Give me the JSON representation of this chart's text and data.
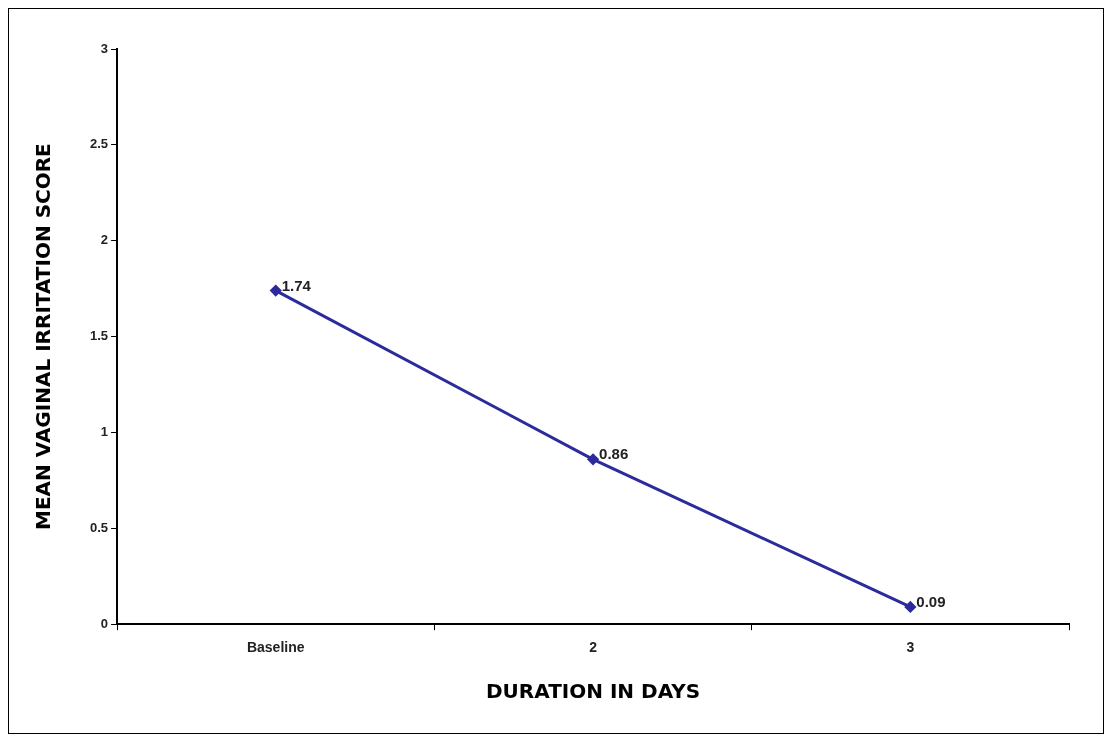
{
  "chart_data": {
    "type": "line",
    "xlabel": "DURATION IN DAYS",
    "ylabel": "MEAN VAGINAL IRRITATION SCORE",
    "categories": [
      "Baseline",
      "2",
      "3"
    ],
    "series": [
      {
        "color": "#2b2b9c",
        "values": [
          1.74,
          0.86,
          0.09
        ]
      }
    ],
    "ylim": [
      0,
      3
    ],
    "yticks": [
      0,
      0.5,
      1,
      1.5,
      2,
      2.5,
      3
    ],
    "grid": false,
    "legend": false,
    "marker": "diamond",
    "line_style": "solid",
    "data_labels": true
  }
}
